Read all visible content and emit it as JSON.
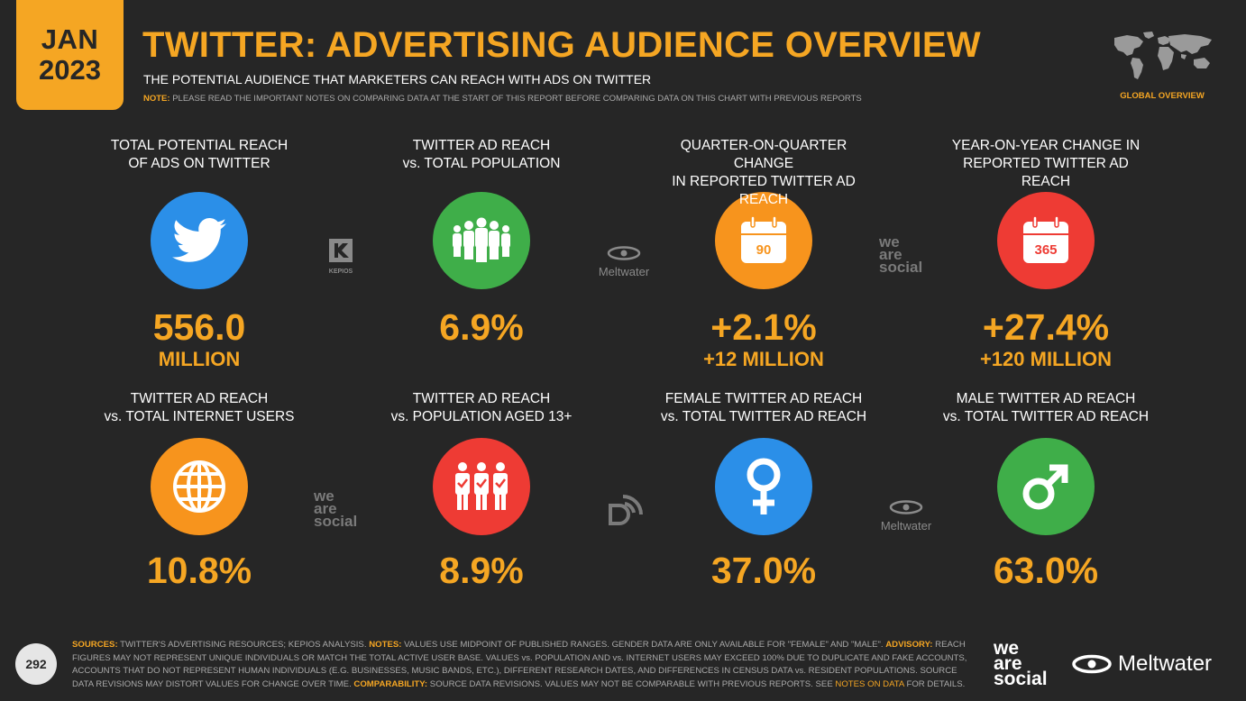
{
  "badge": {
    "month": "JAN",
    "year": "2023"
  },
  "header": {
    "title": "TWITTER: ADVERTISING AUDIENCE OVERVIEW",
    "subtitle": "THE POTENTIAL AUDIENCE THAT MARKETERS CAN REACH WITH ADS ON TWITTER",
    "note_label": "NOTE:",
    "note_text": "PLEASE READ THE IMPORTANT NOTES ON COMPARING DATA AT THE START OF THIS REPORT BEFORE COMPARING DATA ON THIS CHART WITH PREVIOUS REPORTS",
    "global_label": "GLOBAL OVERVIEW"
  },
  "colors": {
    "accent": "#f5a623",
    "background": "#262626",
    "blue": "#2b8fe8",
    "green": "#3fae49",
    "orange": "#f7941d",
    "red": "#ee3b34"
  },
  "cards": [
    {
      "label1": "TOTAL POTENTIAL REACH",
      "label2": "OF ADS ON TWITTER",
      "icon": "twitter-bird-icon",
      "value": "556.0",
      "sub": "MILLION"
    },
    {
      "label1": "TWITTER AD REACH",
      "label2": "vs. TOTAL POPULATION",
      "icon": "people-group-icon",
      "value": "6.9%",
      "sub": ""
    },
    {
      "label1": "QUARTER-ON-QUARTER CHANGE",
      "label2": "IN REPORTED TWITTER AD REACH",
      "icon": "calendar-90-icon",
      "icon_text": "90",
      "value": "+2.1%",
      "sub": "+12 MILLION"
    },
    {
      "label1": "YEAR-ON-YEAR CHANGE IN",
      "label2": "REPORTED TWITTER AD REACH",
      "icon": "calendar-365-icon",
      "icon_text": "365",
      "value": "+27.4%",
      "sub": "+120 MILLION"
    },
    {
      "label1": "TWITTER AD REACH",
      "label2": "vs. TOTAL INTERNET USERS",
      "icon": "globe-icon",
      "value": "10.8%"
    },
    {
      "label1": "TWITTER AD REACH",
      "label2": "vs. POPULATION AGED 13+",
      "icon": "adults-check-icon",
      "value": "8.9%"
    },
    {
      "label1": "FEMALE TWITTER AD REACH",
      "label2": "vs. TOTAL TWITTER AD REACH",
      "icon": "female-symbol-icon",
      "value": "37.0%"
    },
    {
      "label1": "MALE TWITTER AD REACH",
      "label2": "vs. TOTAL TWITTER AD REACH",
      "icon": "male-symbol-icon",
      "value": "63.0%"
    }
  ],
  "logos": {
    "kepios": "KEPIOS",
    "meltwater": "Meltwater",
    "we": "we",
    "are": "are",
    "social": "social"
  },
  "footer": {
    "page_number": "292",
    "sources_label": "SOURCES:",
    "sources_text": "TWITTER'S ADVERTISING RESOURCES; KEPIOS ANALYSIS.",
    "notes_label": "NOTES:",
    "notes_text": "VALUES USE MIDPOINT OF PUBLISHED RANGES. GENDER DATA ARE ONLY AVAILABLE FOR \"FEMALE\" AND \"MALE\".",
    "advisory_label": "ADVISORY:",
    "advisory_text": "REACH FIGURES MAY NOT REPRESENT UNIQUE INDIVIDUALS OR MATCH THE TOTAL ACTIVE USER BASE. VALUES vs. POPULATION AND vs. INTERNET USERS MAY EXCEED 100% DUE TO DUPLICATE AND FAKE ACCOUNTS, ACCOUNTS THAT DO NOT REPRESENT HUMAN INDIVIDUALS (E.G. BUSINESSES, MUSIC BANDS, ETC.), DIFFERENT RESEARCH DATES, AND DIFFERENCES IN CENSUS DATA vs. RESIDENT POPULATIONS. SOURCE DATA REVISIONS MAY DISTORT VALUES FOR CHANGE OVER TIME.",
    "comparability_label": "COMPARABILITY:",
    "comparability_text": "SOURCE DATA REVISIONS. VALUES MAY NOT BE COMPARABLE WITH PREVIOUS REPORTS. SEE",
    "link_text": "NOTES ON DATA",
    "end_text": "FOR DETAILS.",
    "brand_we": "we",
    "brand_are": "are",
    "brand_social": "social",
    "brand_meltwater": "Meltwater"
  }
}
